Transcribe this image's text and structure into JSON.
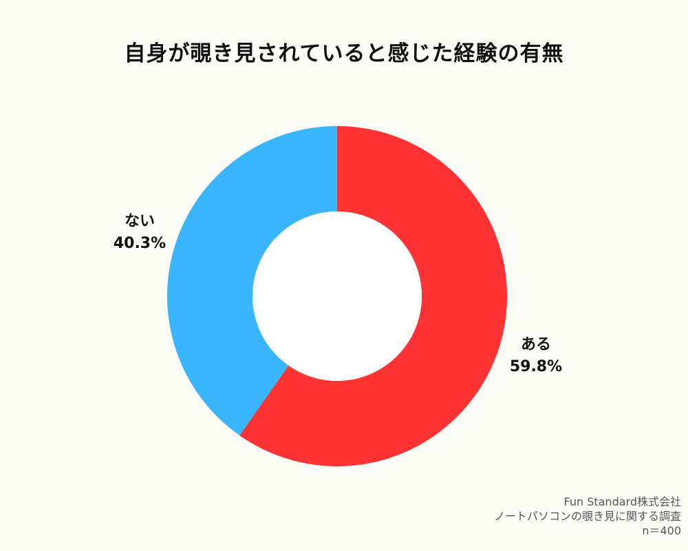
{
  "chart_data": {
    "type": "pie",
    "title": "自身が覗き見されていると感じた経験の有無",
    "slices": [
      {
        "label": "ある",
        "value": 59.8,
        "display": "59.8%",
        "color": "#FF3333"
      },
      {
        "label": "ない",
        "value": 40.3,
        "display": "40.3%",
        "color": "#3AB5FF"
      }
    ],
    "legend": "none"
  },
  "source": {
    "company": "Fun Standard株式会社",
    "survey": "ノートパソコンの覗き見に関する調査",
    "sample": "n＝400"
  }
}
